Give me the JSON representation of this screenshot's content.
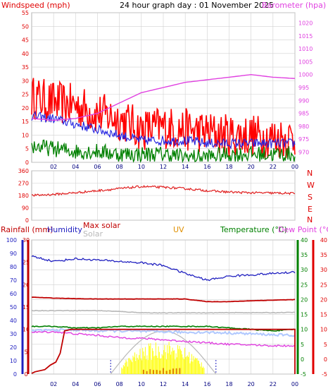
{
  "header": {
    "windspeed": "Windspeed (mph)",
    "title": "24 hour graph day : 01 November 2025",
    "barometer": "Barometer (hpa)"
  },
  "bottom_labels": {
    "rainfall": "Rainfall (mm)",
    "humidity": "Humidity",
    "max_solar": "Max solar",
    "solar": "Solar",
    "uv": "UV",
    "temperature": "Temperature (°C)",
    "dew_point": "Dew Point (°C)"
  },
  "compass": [
    "N",
    "W",
    "S",
    "E",
    "N"
  ],
  "x_ticks": [
    "02",
    "04",
    "06",
    "08",
    "10",
    "12",
    "14",
    "16",
    "18",
    "20",
    "22",
    "00"
  ],
  "colors": {
    "wind": "#ff0000",
    "gust": "#ff2020",
    "avg": "#2020e0",
    "low": "#008000",
    "baro": "#e040e0",
    "dir": "#e02020",
    "humidity": "#2020c0",
    "temp": "#008000",
    "dew": "#e040e0",
    "apparent": "#b0c8ff",
    "maxsolar": "#c00000",
    "solar": "#b8b8b8",
    "uv": "#ffff00",
    "rain": "#c00000",
    "grid": "#d0d0d0"
  },
  "chart_data": [
    {
      "type": "line",
      "title": "24 hour graph day : 01 November 2025",
      "x_label": "hour",
      "left_axis": {
        "label": "Windspeed (mph)",
        "range": [
          0,
          55
        ],
        "ticks": [
          "0",
          "5",
          "10",
          "15",
          "20",
          "25",
          "30",
          "35",
          "40",
          "45",
          "50",
          "55"
        ]
      },
      "right_axis": {
        "label": "Barometer (hpa)",
        "range": [
          966,
          1024
        ],
        "ticks": [
          "970",
          "975",
          "980",
          "985",
          "990",
          "995",
          "1000",
          "1005",
          "1010",
          "1015",
          "1020"
        ]
      },
      "x": [
        0,
        2,
        4,
        6,
        8,
        10,
        12,
        14,
        16,
        18,
        20,
        22,
        24
      ],
      "series": [
        {
          "name": "Windspeed (mph)",
          "values": [
            24,
            22,
            21,
            18,
            16,
            12,
            13,
            12,
            11,
            10,
            10,
            9,
            9
          ]
        },
        {
          "name": "",
          "values": [
            17,
            16,
            14,
            12,
            10,
            8,
            8,
            8,
            7,
            7,
            7,
            7,
            7
          ]
        },
        {
          "name": "",
          "values": [
            6,
            5,
            4,
            4,
            3,
            3,
            3,
            2,
            2,
            3,
            3,
            3,
            3
          ]
        },
        {
          "name": "Barometer (hpa)",
          "values": [
            983,
            982.3,
            983,
            985,
            989,
            993,
            995,
            997,
            998,
            999,
            1000,
            999,
            998.5
          ]
        }
      ]
    },
    {
      "type": "line",
      "title": "",
      "left_axis": {
        "range": [
          0,
          360
        ],
        "ticks": [
          "0",
          "90",
          "180",
          "270",
          "360"
        ]
      },
      "x": [
        0,
        2,
        4,
        6,
        8,
        10,
        12,
        14,
        16,
        18,
        20,
        22,
        24
      ],
      "series": [
        {
          "name": "",
          "values": [
            180,
            188,
            200,
            215,
            230,
            245,
            240,
            230,
            215,
            205,
            200,
            198,
            195
          ]
        }
      ]
    },
    {
      "type": "line",
      "title": "",
      "axes": {
        "rainfall": {
          "label": "Rainfall (mm)",
          "range": [
            0,
            100
          ],
          "ticks": [
            "0",
            "10",
            "20",
            "30",
            "40",
            "50",
            "60",
            "70",
            "80",
            "90",
            "100"
          ]
        },
        "humidity": {
          "label": "Humidity",
          "range": [
            0,
            30
          ],
          "ticks": [
            "0",
            "5",
            "10",
            "15",
            "20",
            "25",
            "30"
          ]
        },
        "temperature": {
          "label": "Temperature (°C)",
          "range": [
            -5,
            40
          ],
          "ticks": [
            "-5",
            "0",
            "5",
            "10",
            "15",
            "20",
            "25",
            "30",
            "35",
            "40"
          ]
        },
        "dew_point": {
          "label": "Dew Point (°C)",
          "range": [
            -5,
            40
          ],
          "ticks": [
            "-5",
            "0",
            "5",
            "10",
            "15",
            "20",
            "25",
            "30",
            "35",
            "40"
          ]
        }
      },
      "x": [
        0,
        2,
        4,
        6,
        8,
        10,
        12,
        14,
        16,
        18,
        20,
        22,
        24
      ],
      "series": [
        {
          "name": "Humidity",
          "values": [
            88,
            84,
            86,
            85,
            84,
            83,
            81,
            75,
            70,
            73,
            74,
            75,
            76
          ]
        },
        {
          "name": "Temperature (°C)",
          "values": [
            11,
            11,
            10.5,
            10.5,
            11,
            11,
            11,
            11,
            11,
            10.5,
            10,
            9.5,
            10
          ]
        },
        {
          "name": "Dew Point (°C)",
          "values": [
            9,
            9.2,
            8.5,
            8,
            7.2,
            7,
            6.5,
            6,
            5.5,
            5,
            4.8,
            4.5,
            4.5
          ]
        },
        {
          "name": "",
          "values": [
            9.5,
            9.8,
            9.8,
            9.5,
            9.5,
            9.3,
            9.2,
            9,
            9,
            8.8,
            8.5,
            8.2,
            8
          ]
        },
        {
          "name": "Max solar",
          "values": [
            20.8,
            20.5,
            20.3,
            20.2,
            20.2,
            20.2,
            20.2,
            20.2,
            19.3,
            19.3,
            19.6,
            19.8,
            20
          ]
        },
        {
          "name": "Solar",
          "values": [
            16.3,
            16.3,
            16.3,
            16.3,
            16,
            15.6,
            15.5,
            15.6,
            15.5,
            15.6,
            15.6,
            15.6,
            15.7
          ]
        },
        {
          "name": "UV",
          "values": [
            0,
            0,
            0,
            0,
            0,
            1,
            3,
            4,
            2,
            0,
            0,
            0,
            0
          ]
        },
        {
          "name": "Rainfall (mm)",
          "values": [
            0,
            5,
            10,
            10,
            10,
            10,
            10,
            10,
            10,
            10,
            10,
            10,
            10
          ]
        }
      ]
    }
  ]
}
